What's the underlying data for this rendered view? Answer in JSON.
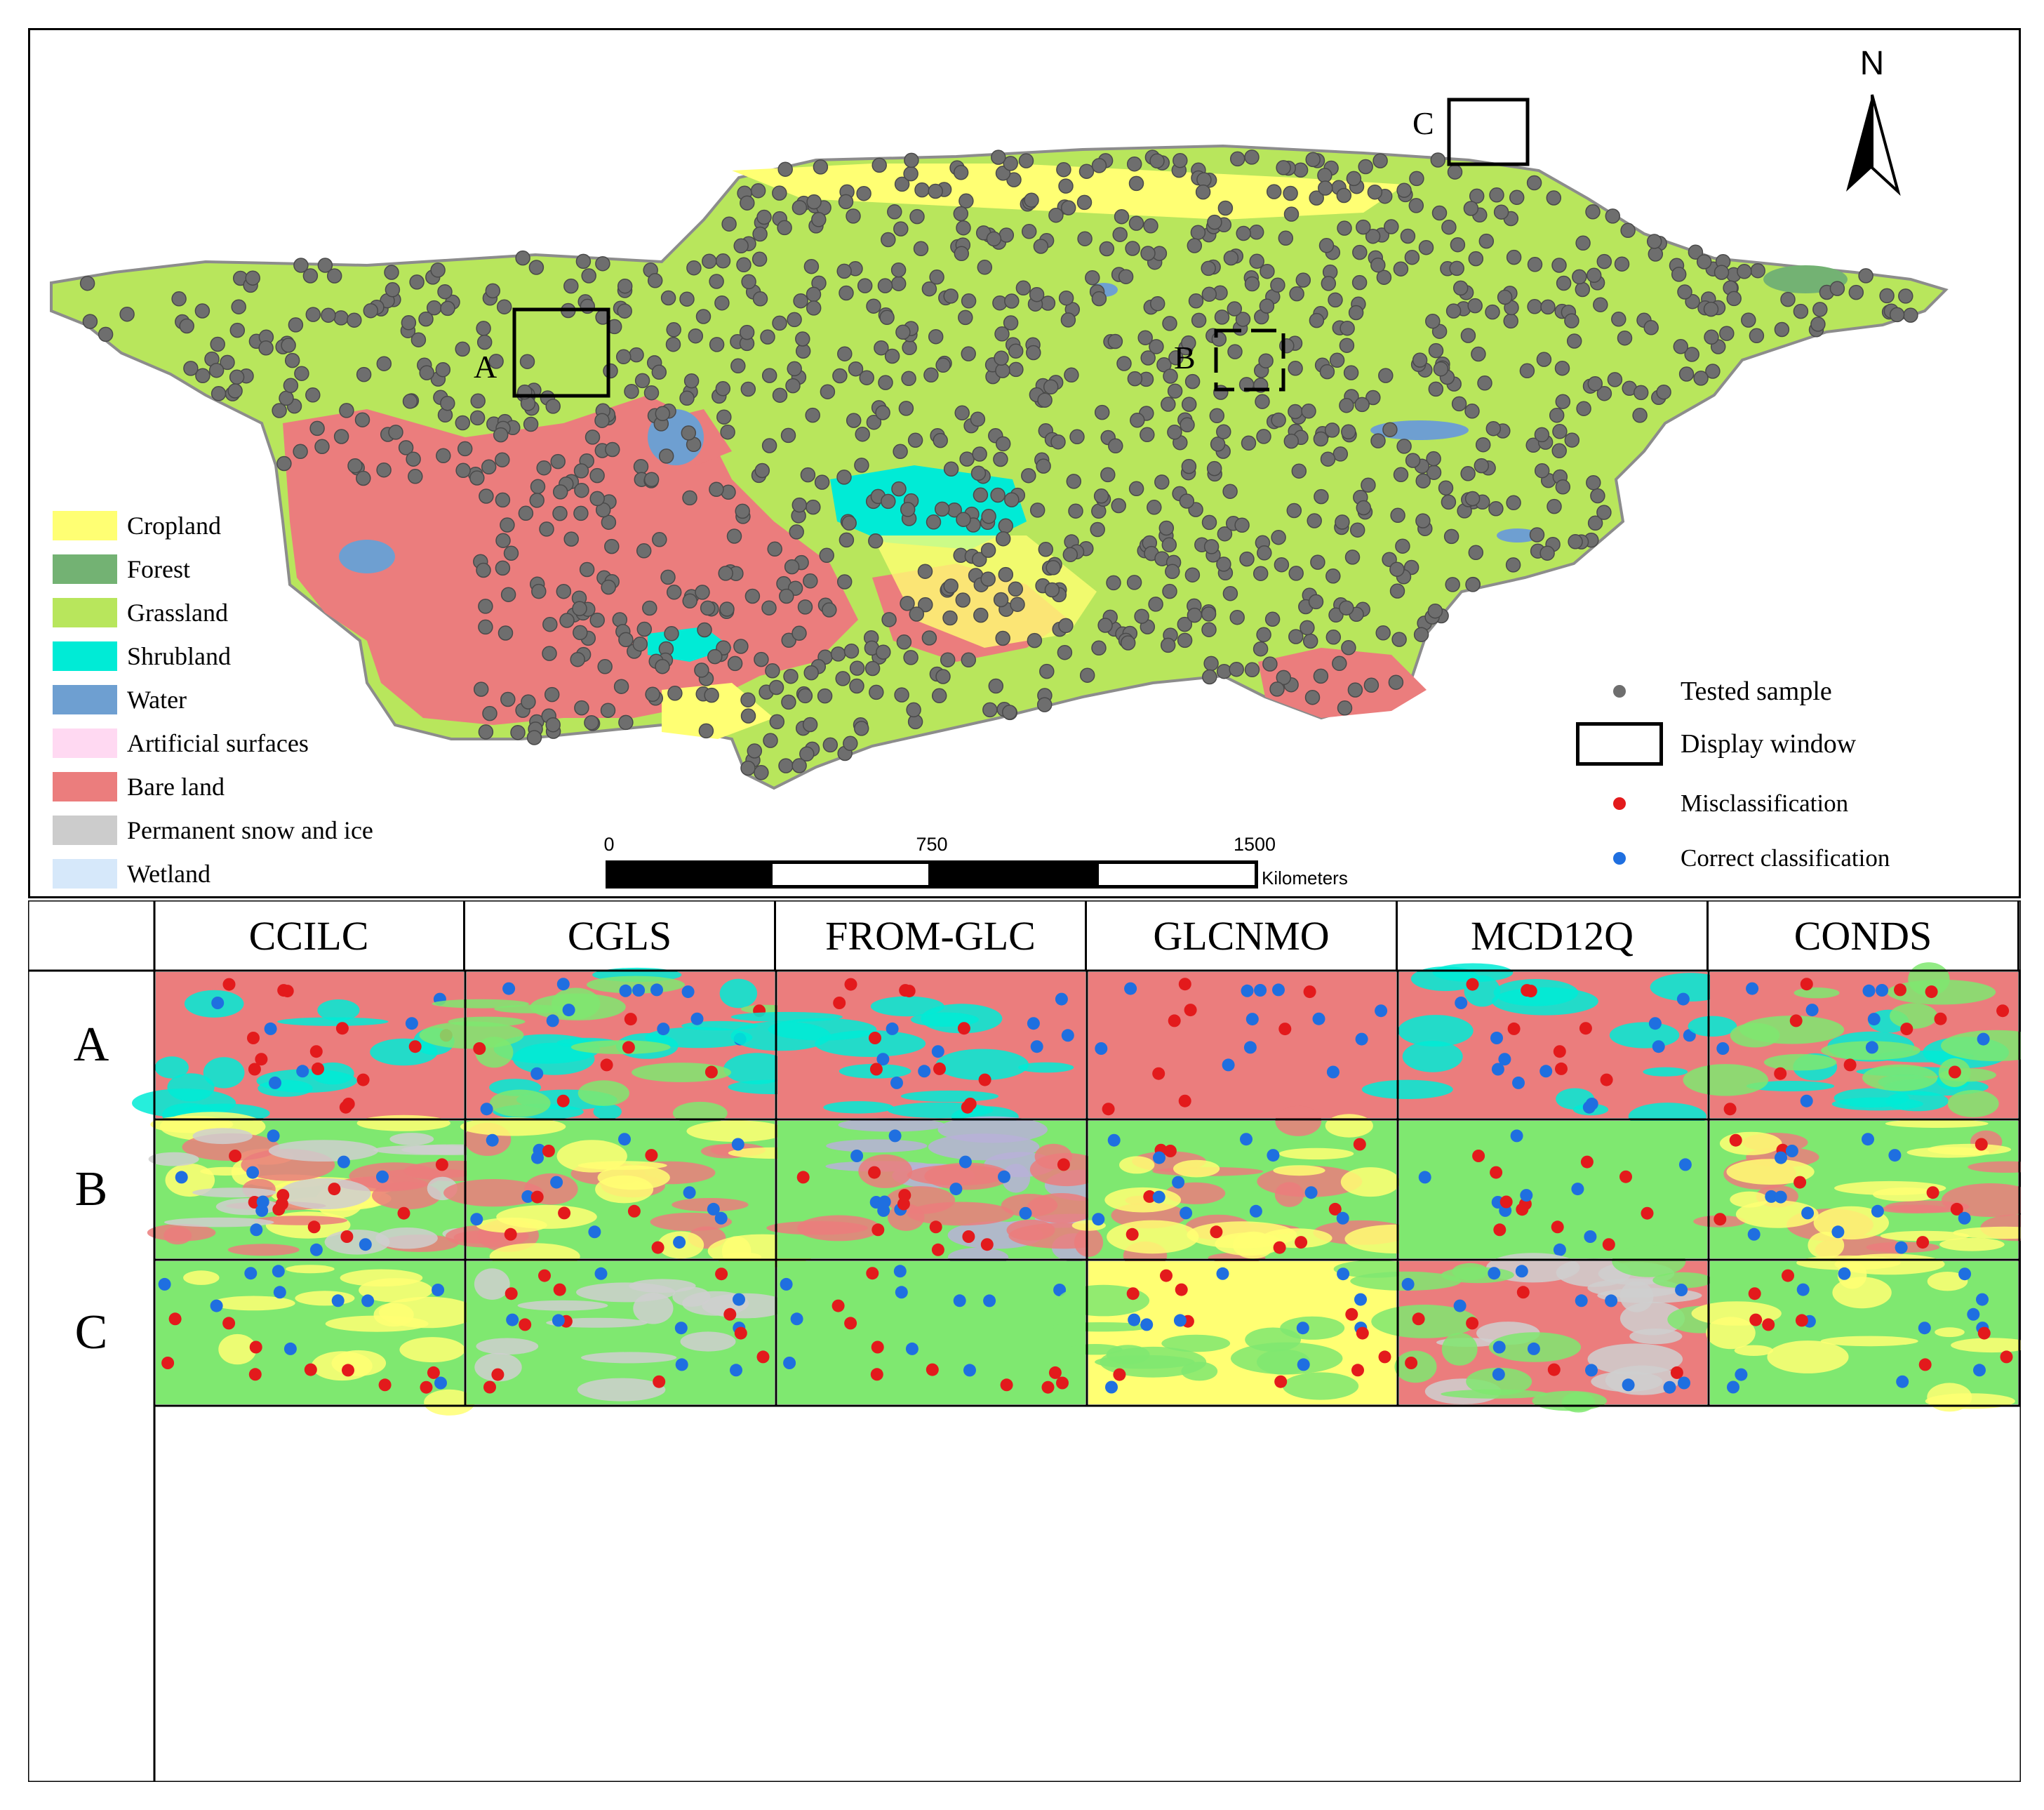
{
  "map": {
    "north_label": "N",
    "window_labels": {
      "a": "A",
      "b": "B",
      "c": "C"
    }
  },
  "legend": {
    "items": [
      {
        "label": "Cropland",
        "color": "#ffff73"
      },
      {
        "label": "Forest",
        "color": "#73b273"
      },
      {
        "label": "Grassland",
        "color": "#b8e65c"
      },
      {
        "label": "Shrubland",
        "color": "#00ebd6"
      },
      {
        "label": "Water",
        "color": "#6e9fd1"
      },
      {
        "label": "Artificial surfaces",
        "color": "#ffd9f2"
      },
      {
        "label": "Bare land",
        "color": "#eb7d7d"
      },
      {
        "label": "Permanent snow and ice",
        "color": "#cccccc"
      },
      {
        "label": "Wetland",
        "color": "#d6e8fa"
      }
    ]
  },
  "scale_bar": {
    "ticks": [
      "0",
      "750",
      "1500"
    ],
    "unit": "Kilometers"
  },
  "symbols": {
    "tested_sample": "Tested sample",
    "display_window": "Display window",
    "misclassification": "Misclassification",
    "correct_classification": "Correct classification",
    "colors": {
      "sample": "#6e6e6e",
      "mis": "#e31a1c",
      "correct": "#1f6fe0"
    }
  },
  "comparison": {
    "columns": [
      "CCILC",
      "CGLS",
      "FROM-GLC",
      "GLCNMO",
      "MCD12Q",
      "CONDS"
    ],
    "rows": [
      "A",
      "B",
      "C"
    ]
  }
}
